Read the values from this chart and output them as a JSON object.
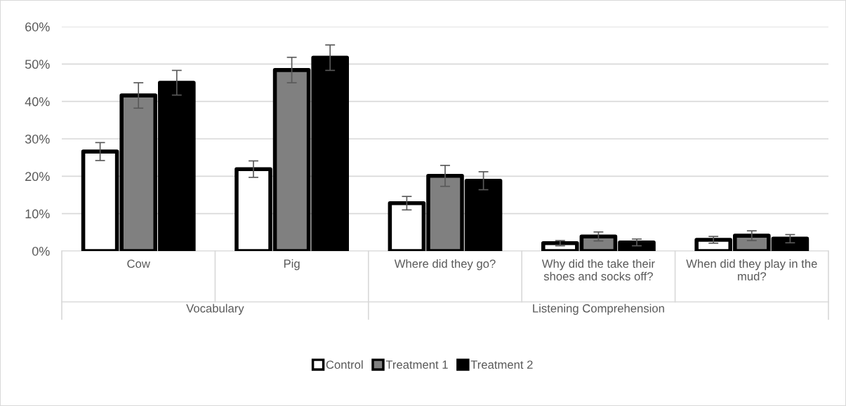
{
  "chart_data": {
    "type": "bar",
    "categories": [
      "Cow",
      "Pig",
      "Where did they go?",
      "Why did the take their shoes and socks off?",
      "When did they play in the mud?"
    ],
    "series": [
      {
        "name": "Control",
        "color": "#ffffff",
        "values": [
          26.6,
          21.9,
          12.8,
          2.1,
          3.0
        ],
        "errors": [
          2.4,
          2.2,
          1.8,
          0.7,
          0.9
        ]
      },
      {
        "name": "Treatment 1",
        "color": "#808080",
        "values": [
          41.6,
          48.4,
          20.1,
          3.9,
          4.1
        ],
        "errors": [
          3.4,
          3.4,
          2.8,
          1.2,
          1.3
        ]
      },
      {
        "name": "Treatment 2",
        "color": "#000000",
        "values": [
          45.0,
          51.7,
          18.8,
          2.3,
          3.3
        ],
        "errors": [
          3.3,
          3.4,
          2.4,
          0.9,
          1.1
        ]
      }
    ],
    "annotations": [
      "Vocabulary",
      "Listening Comprehension"
    ],
    "ylim": [
      0,
      60
    ],
    "yticks": [
      {
        "value": 0,
        "label": "0%"
      },
      {
        "value": 10,
        "label": "10%"
      },
      {
        "value": 20,
        "label": "20%"
      },
      {
        "value": 30,
        "label": "30%"
      },
      {
        "value": 40,
        "label": "40%"
      },
      {
        "value": 50,
        "label": "50%"
      },
      {
        "value": 60,
        "label": "60%"
      }
    ],
    "grid": "y",
    "legend": "bottom"
  }
}
